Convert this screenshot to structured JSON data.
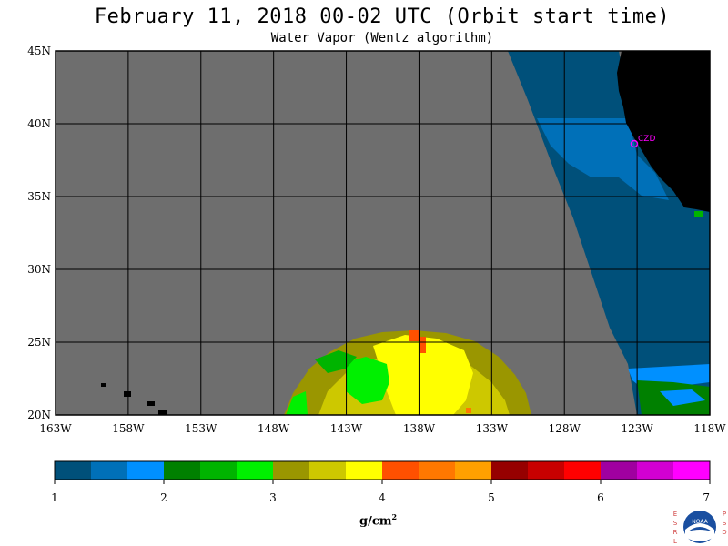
{
  "header": {
    "title": "February 11, 2018  00-02 UTC  (Orbit start time)",
    "subtitle": "Water Vapor (Wentz algorithm)"
  },
  "map": {
    "lon_labels": [
      "163W",
      "158W",
      "153W",
      "148W",
      "143W",
      "138W",
      "133W",
      "128W",
      "123W",
      "118W"
    ],
    "lat_labels": [
      "45N",
      "40N",
      "35N",
      "30N",
      "25N",
      "20N"
    ],
    "station_label": "CZD",
    "colors": {
      "no_data": "#6e6e6e",
      "land": "#000000",
      "grid": "#000000",
      "station": "#ff00ff"
    }
  },
  "colorbar": {
    "colors": [
      "#00507a",
      "#0070b8",
      "#0090ff",
      "#008000",
      "#00b400",
      "#00f000",
      "#9a9600",
      "#cdc800",
      "#ffff00",
      "#ff5000",
      "#ff7800",
      "#ffa000",
      "#960000",
      "#c80000",
      "#ff0000",
      "#a000a0",
      "#d200d2",
      "#ff00ff"
    ],
    "tick_labels": [
      "1",
      "2",
      "3",
      "4",
      "5",
      "6",
      "7"
    ],
    "units_base": "g/cm",
    "units_exp": "2"
  },
  "logo": {
    "left_letters": [
      "E",
      "S",
      "R",
      "L"
    ],
    "right_letters": [
      "P",
      "S",
      "D"
    ],
    "center_text": "NOAA"
  }
}
